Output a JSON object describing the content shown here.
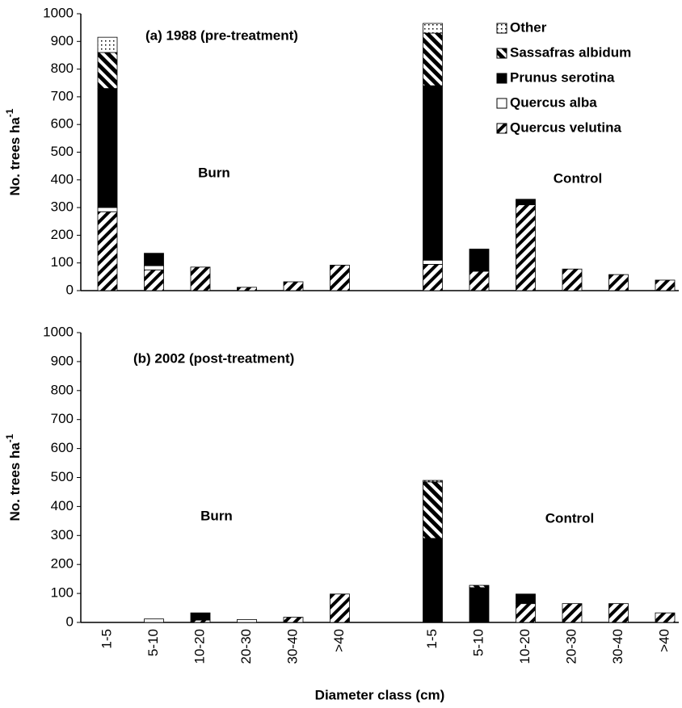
{
  "chart_data": [
    {
      "type": "bar",
      "stacked": true,
      "title": "(a) 1988 (pre-treatment)",
      "annotations": [
        "Burn",
        "Control"
      ],
      "y_label": "No. trees ha",
      "y_label_superscript": "-1",
      "legend": "upper right",
      "ylim": [
        0,
        1000
      ],
      "yticks": [
        0,
        100,
        200,
        300,
        400,
        500,
        600,
        700,
        800,
        900,
        1000
      ],
      "series": [
        {
          "name": "Quercus velutina",
          "color": "#000000",
          "pattern": "hatch",
          "values": [
            285,
            75,
            85,
            12,
            32,
            92,
            null,
            95,
            70,
            310,
            78,
            58,
            38
          ]
        },
        {
          "name": "Quercus alba",
          "color": "#ffffff",
          "pattern": "solid",
          "values": [
            15,
            15,
            0,
            0,
            0,
            0,
            null,
            15,
            0,
            0,
            0,
            0,
            0
          ]
        },
        {
          "name": "Prunus serotina",
          "color": "#000000",
          "pattern": "solid",
          "values": [
            430,
            45,
            0,
            0,
            0,
            0,
            null,
            630,
            80,
            20,
            0,
            0,
            0
          ]
        },
        {
          "name": "Sassafras albidum",
          "color": "#000000",
          "pattern": "backhatch",
          "values": [
            130,
            0,
            0,
            0,
            0,
            0,
            null,
            190,
            0,
            0,
            0,
            0,
            0
          ]
        },
        {
          "name": "Other",
          "color": "#000000",
          "pattern": "dots",
          "values": [
            55,
            0,
            0,
            0,
            0,
            0,
            null,
            35,
            0,
            0,
            0,
            0,
            0
          ]
        }
      ]
    },
    {
      "type": "bar",
      "stacked": true,
      "title": "(b) 2002 (post-treatment)",
      "annotations": [
        "Burn",
        "Control"
      ],
      "y_label": "No. trees ha",
      "y_label_superscript": "-1",
      "x_label": "Diameter class (cm)",
      "categories": [
        "1-5",
        "5-10",
        "10-20",
        "20-30",
        "30-40",
        ">40",
        null,
        "1-5",
        "5-10",
        "10-20",
        "20-30",
        "30-40",
        ">40"
      ],
      "ylim": [
        0,
        1000
      ],
      "yticks": [
        0,
        100,
        200,
        300,
        400,
        500,
        600,
        700,
        800,
        900,
        1000
      ],
      "series": [
        {
          "color": "#000000",
          "pattern": "hatch",
          "values": [
            0,
            0,
            8,
            0,
            18,
            98,
            null,
            0,
            0,
            65,
            65,
            65,
            33
          ]
        },
        {
          "color": "#ffffff",
          "pattern": "solid",
          "values": [
            0,
            12,
            0,
            10,
            0,
            0,
            null,
            0,
            0,
            0,
            0,
            0,
            0
          ]
        },
        {
          "color": "#000000",
          "pattern": "solid",
          "values": [
            0,
            0,
            25,
            0,
            0,
            0,
            null,
            290,
            120,
            33,
            0,
            0,
            0
          ]
        },
        {
          "color": "#000000",
          "pattern": "backhatch",
          "values": [
            0,
            0,
            0,
            0,
            0,
            0,
            null,
            195,
            8,
            0,
            0,
            0,
            0
          ]
        },
        {
          "color": "#000000",
          "pattern": "dots",
          "values": [
            0,
            0,
            0,
            0,
            0,
            0,
            null,
            5,
            0,
            0,
            0,
            0,
            0
          ]
        }
      ]
    }
  ]
}
